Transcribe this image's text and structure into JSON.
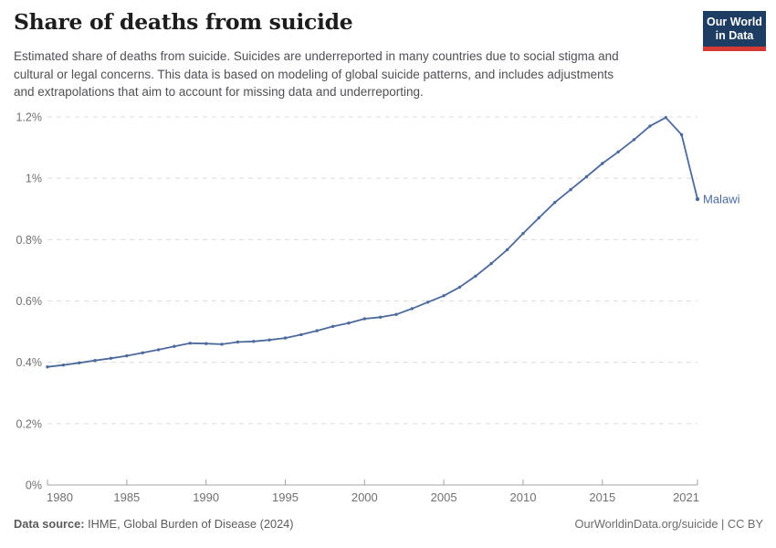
{
  "header": {
    "title": "Share of deaths from suicide",
    "subtitle_lines": [
      "Estimated share of deaths from suicide. Suicides are underreported in many countries due to social stigma and",
      "cultural or legal concerns. This data is based on modeling of global suicide patterns, and includes adjustments",
      "and extrapolations that aim to account for missing data and underreporting."
    ],
    "logo": {
      "line1": "Our World",
      "line2": "in Data",
      "navy": "#1d3d63",
      "red": "#d73a34"
    }
  },
  "chart_data": {
    "type": "line",
    "title": "Share of deaths from suicide",
    "xlabel": "",
    "ylabel": "",
    "xlim": [
      1980,
      2021
    ],
    "ylim": [
      0,
      1.2
    ],
    "grid": "horizontal-dashed",
    "legend_position": "end-of-line-label",
    "end_label": "Malawi",
    "unit": "%",
    "x_ticks": [
      1980,
      1985,
      1990,
      1995,
      2000,
      2005,
      2010,
      2015,
      2021
    ],
    "y_ticks": [
      {
        "value": 0,
        "label": "0%"
      },
      {
        "value": 0.2,
        "label": "0.2%"
      },
      {
        "value": 0.4,
        "label": "0.4%"
      },
      {
        "value": 0.6,
        "label": "0.6%"
      },
      {
        "value": 0.8,
        "label": "0.8%"
      },
      {
        "value": 1,
        "label": "1%"
      },
      {
        "value": 1.2,
        "label": "1.2%"
      }
    ],
    "x": [
      1980,
      1981,
      1982,
      1983,
      1984,
      1985,
      1986,
      1987,
      1988,
      1989,
      1990,
      1991,
      1992,
      1993,
      1994,
      1995,
      1996,
      1997,
      1998,
      1999,
      2000,
      2001,
      2002,
      2003,
      2004,
      2005,
      2006,
      2007,
      2008,
      2009,
      2010,
      2011,
      2012,
      2013,
      2014,
      2015,
      2016,
      2017,
      2018,
      2019,
      2020,
      2021
    ],
    "series": [
      {
        "name": "Malawi",
        "color": "#4c6a9c",
        "values": [
          0.385,
          0.391,
          0.398,
          0.406,
          0.413,
          0.421,
          0.431,
          0.441,
          0.452,
          0.462,
          0.461,
          0.459,
          0.466,
          0.468,
          0.473,
          0.479,
          0.49,
          0.503,
          0.517,
          0.528,
          0.542,
          0.547,
          0.556,
          0.575,
          0.596,
          0.617,
          0.645,
          0.681,
          0.722,
          0.767,
          0.82,
          0.871,
          0.921,
          0.963,
          1.005,
          1.048,
          1.086,
          1.126,
          1.17,
          1.198,
          1.142,
          0.932
        ]
      }
    ]
  },
  "footer": {
    "source_label": "Data source:",
    "source_value": " IHME, Global Burden of Disease (2024)",
    "credit": "OurWorldinData.org/suicide | CC BY"
  }
}
